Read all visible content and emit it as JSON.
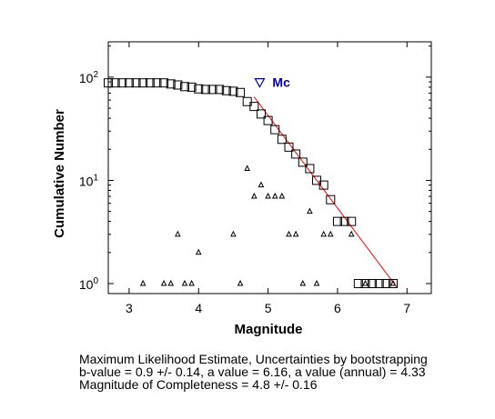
{
  "chart_data": {
    "type": "scatter",
    "xlabel": "Magnitude",
    "ylabel": "Cumulative Number",
    "x_axis": {
      "range": [
        2.7,
        7.35
      ],
      "ticks": [
        3,
        4,
        5,
        6,
        7
      ]
    },
    "y_axis": {
      "scale": "log",
      "range": [
        0.8,
        220
      ],
      "ticks": [
        {
          "value": 1,
          "base": "10",
          "exp": "0"
        },
        {
          "value": 10,
          "base": "10",
          "exp": "1"
        },
        {
          "value": 100,
          "base": "10",
          "exp": "2"
        }
      ]
    },
    "grid": false,
    "series": [
      {
        "marker": "square",
        "color": "#000000",
        "x": [
          2.7,
          2.8,
          2.9,
          3.0,
          3.1,
          3.2,
          3.3,
          3.4,
          3.5,
          3.6,
          3.7,
          3.8,
          3.9,
          4.0,
          4.1,
          4.2,
          4.3,
          4.4,
          4.5,
          4.6,
          4.7,
          4.8,
          4.9,
          5.0,
          5.1,
          5.2,
          5.3,
          5.4,
          5.5,
          5.6,
          5.7,
          5.8,
          5.9,
          6.0,
          6.1,
          6.2,
          6.3,
          6.4,
          6.5,
          6.6,
          6.7,
          6.8
        ],
        "y": [
          88,
          88,
          88,
          88,
          88,
          88,
          88,
          88,
          88,
          86,
          84,
          81,
          80,
          77,
          76,
          76,
          76,
          74,
          73,
          71,
          58,
          52,
          44,
          38,
          31,
          25,
          21,
          18,
          15,
          13,
          10,
          9,
          6.5,
          4,
          4,
          4,
          1,
          1,
          1,
          1,
          1,
          1
        ]
      },
      {
        "marker": "triangle",
        "color": "#000000",
        "x": [
          3.2,
          3.5,
          3.6,
          3.7,
          3.8,
          3.9,
          4.0,
          4.5,
          4.6,
          4.7,
          4.8,
          4.9,
          5.0,
          5.1,
          5.2,
          5.3,
          5.4,
          5.5,
          5.6,
          5.7,
          5.8,
          5.9,
          6.2,
          6.4,
          6.8
        ],
        "y": [
          1,
          1,
          1,
          3,
          1,
          1,
          2,
          3,
          1,
          13,
          7,
          9,
          7,
          7,
          7,
          3,
          3,
          1,
          5,
          1,
          3,
          3,
          3,
          1,
          1
        ]
      }
    ],
    "fit_line": {
      "color": "#ff0000",
      "x": [
        4.8,
        6.86
      ],
      "y": [
        64.3,
        0.91
      ]
    },
    "mc_marker": {
      "x": 4.88,
      "y": 89,
      "label": "Mc",
      "color": "#0000aa"
    }
  },
  "summary": {
    "line1": "Maximum Likelihood Estimate, Uncertainties by bootstrapping",
    "line2": "b-value = 0.9 +/- 0.14,  a value = 6.16,  a value (annual) = 4.33",
    "line3": "Magnitude of Completeness = 4.8 +/- 0.16"
  }
}
